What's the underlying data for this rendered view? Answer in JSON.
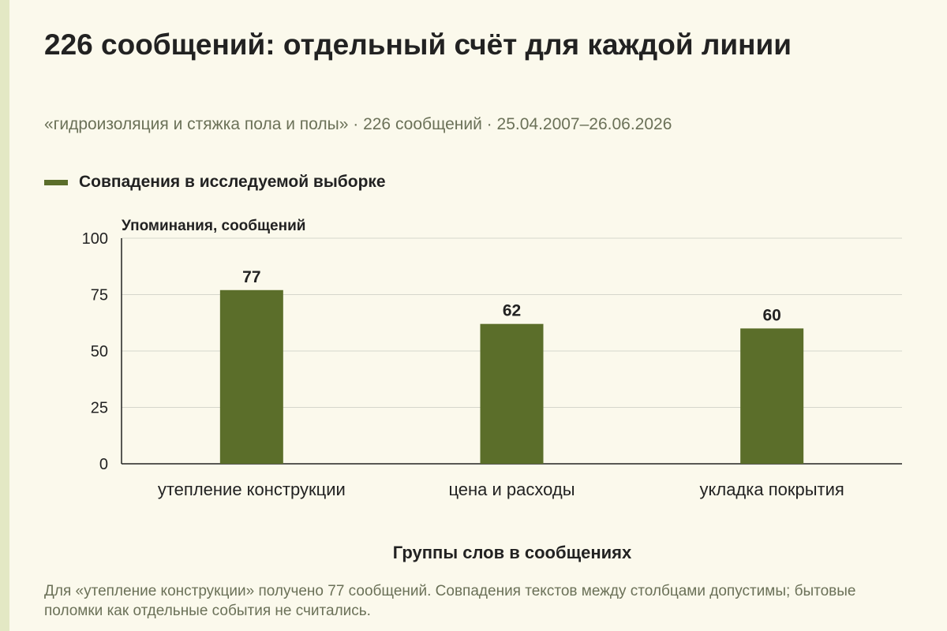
{
  "header": {
    "title": "226 сообщений: отдельный счёт для каждой линии",
    "subtitle": "«гидроизоляция и стяжка пола и полы» · 226 сообщений · 25.04.2007–26.06.2026"
  },
  "legend": {
    "items": [
      {
        "label": "Совпадения в исследуемой выборке",
        "color": "#5b6e2a"
      }
    ]
  },
  "chart_data": {
    "type": "bar",
    "categories": [
      "утепление конструкции",
      "цена и расходы",
      "укладка покрытия"
    ],
    "series": [
      {
        "name": "Совпадения в исследуемой выборке",
        "values": [
          77,
          62,
          60
        ],
        "color": "#5b6e2a"
      }
    ],
    "ylabel": "Упоминания, сообщений",
    "xlabel": "Группы слов в сообщениях",
    "ylim": [
      0,
      100
    ],
    "yticks": [
      0,
      25,
      50,
      75,
      100
    ],
    "grid": true,
    "legend_position": "top-left"
  },
  "footnote": "Для «утепление конструкции» получено 77 сообщений. Совпадения текстов между столбцами допустимы; бытовые поломки как отдельные события не считались."
}
